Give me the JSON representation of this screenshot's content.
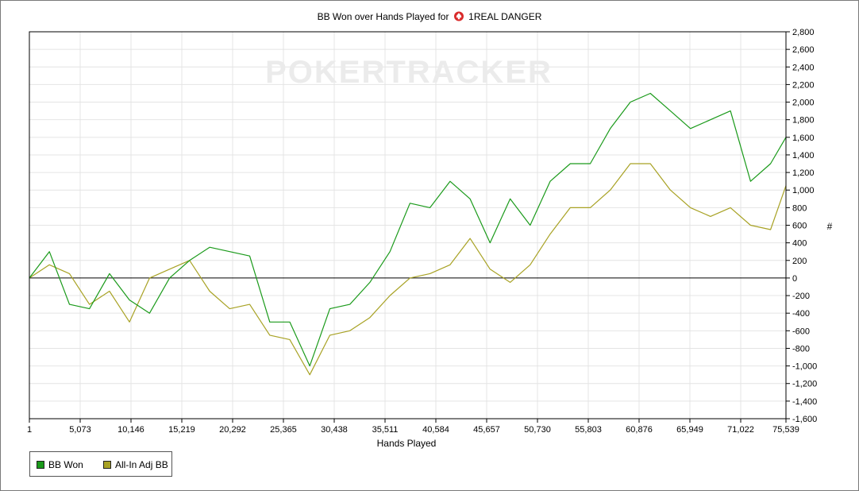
{
  "window": {
    "title": "BB Won over Hands Played for 1REAL DANGER"
  },
  "chart_data": {
    "type": "line",
    "title_prefix": "BB Won over Hands Played for",
    "player": "1REAL DANGER",
    "player_icon": "spade-icon",
    "watermark": "POKERTRACKER",
    "xlabel": "Hands Played",
    "ylabel": "#",
    "xlim": [
      1,
      75539
    ],
    "ylim": [
      -1600,
      2800
    ],
    "x_ticks": [
      "1",
      "5,073",
      "10,146",
      "15,219",
      "20,292",
      "25,365",
      "30,438",
      "35,511",
      "40,584",
      "45,657",
      "50,730",
      "55,803",
      "60,876",
      "65,949",
      "71,022",
      "75,539"
    ],
    "y_ticks": [
      "2,800",
      "2,600",
      "2,400",
      "2,200",
      "2,000",
      "1,800",
      "1,600",
      "1,400",
      "1,200",
      "1,000",
      "800",
      "600",
      "400",
      "200",
      "0",
      "-200",
      "-400",
      "-600",
      "-800",
      "-1,000",
      "-1,200",
      "-1,400",
      "-1,600"
    ],
    "grid": true,
    "legend_position": "bottom-left",
    "x": [
      1,
      2000,
      4000,
      6000,
      8000,
      10000,
      12000,
      14000,
      16000,
      18000,
      20000,
      22000,
      24000,
      26000,
      28000,
      30000,
      32000,
      34000,
      36000,
      38000,
      40000,
      42000,
      44000,
      46000,
      48000,
      50000,
      52000,
      54000,
      56000,
      58000,
      60000,
      62000,
      64000,
      66000,
      68000,
      70000,
      72000,
      74000,
      75539
    ],
    "series": [
      {
        "name": "BB Won",
        "color": "#1a9a1a",
        "values": [
          0,
          300,
          -300,
          -350,
          50,
          -250,
          -400,
          0,
          200,
          350,
          300,
          250,
          -500,
          -500,
          -1000,
          -350,
          -300,
          -50,
          300,
          850,
          800,
          1100,
          900,
          400,
          900,
          600,
          1100,
          1300,
          1300,
          1700,
          2000,
          2100,
          1900,
          1700,
          1800,
          1900,
          1100,
          1300,
          1600
        ]
      },
      {
        "name": "All-In Adj BB",
        "color": "#a8a224",
        "values": [
          0,
          150,
          50,
          -300,
          -150,
          -500,
          0,
          100,
          200,
          -150,
          -350,
          -300,
          -650,
          -700,
          -1100,
          -650,
          -600,
          -450,
          -200,
          0,
          50,
          150,
          450,
          100,
          -50,
          150,
          500,
          800,
          800,
          1000,
          1300,
          1300,
          1000,
          800,
          700,
          800,
          600,
          550,
          1050
        ]
      }
    ]
  },
  "legend": {
    "items": [
      {
        "label": "BB Won",
        "color": "#1a9a1a"
      },
      {
        "label": "All-In Adj BB",
        "color": "#a8a224"
      }
    ]
  }
}
